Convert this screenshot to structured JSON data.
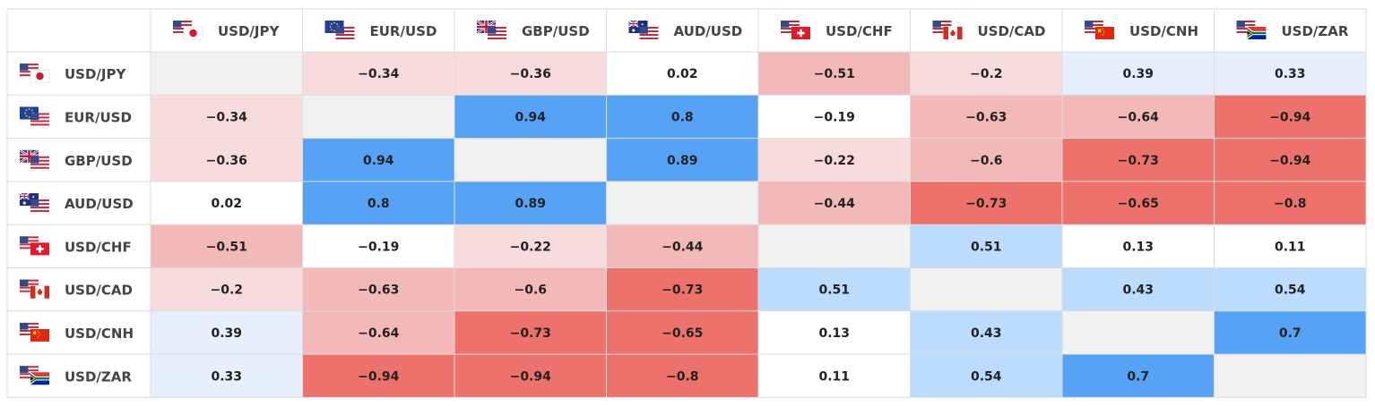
{
  "chart_data": {
    "type": "heatmap",
    "title": "",
    "rows": [
      "USD/JPY",
      "EUR/USD",
      "GBP/USD",
      "AUD/USD",
      "USD/CHF",
      "USD/CAD",
      "USD/CNH",
      "USD/ZAR"
    ],
    "columns": [
      "USD/JPY",
      "EUR/USD",
      "GBP/USD",
      "AUD/USD",
      "USD/CHF",
      "USD/CAD",
      "USD/CNH",
      "USD/ZAR"
    ],
    "values": [
      [
        null,
        -0.34,
        -0.36,
        0.02,
        -0.51,
        -0.2,
        0.39,
        0.33
      ],
      [
        -0.34,
        null,
        0.94,
        0.8,
        -0.19,
        -0.63,
        -0.64,
        -0.94
      ],
      [
        -0.36,
        0.94,
        null,
        0.89,
        -0.22,
        -0.6,
        -0.73,
        -0.94
      ],
      [
        0.02,
        0.8,
        0.89,
        null,
        -0.44,
        -0.73,
        -0.65,
        -0.8
      ],
      [
        -0.51,
        -0.19,
        -0.22,
        -0.44,
        null,
        0.51,
        0.13,
        0.11
      ],
      [
        -0.2,
        -0.63,
        -0.6,
        -0.73,
        0.51,
        null,
        0.43,
        0.54
      ],
      [
        0.39,
        -0.64,
        -0.73,
        -0.65,
        0.13,
        0.43,
        null,
        0.7
      ],
      [
        0.33,
        -0.94,
        -0.94,
        -0.8,
        0.11,
        0.54,
        0.7,
        null
      ]
    ],
    "colors": {
      "diagonal": "#f1f1f1",
      "neutral": "#ffffff",
      "neg_light": "#f8dcdd",
      "neg_mid": "#f3b9b8",
      "neg_strong": "#ec726b",
      "pos_light": "#e6f0fc",
      "pos_mid": "#bcdcfd",
      "pos_strong": "#56a3f5",
      "grid": "#dcdcdc"
    },
    "flags": {
      "USD/JPY": [
        "us-flag-icon",
        "jp-flag-icon"
      ],
      "EUR/USD": [
        "eu-flag-icon",
        "us-flag-icon"
      ],
      "GBP/USD": [
        "gb-flag-icon",
        "us-flag-icon"
      ],
      "AUD/USD": [
        "au-flag-icon",
        "us-flag-icon"
      ],
      "USD/CHF": [
        "us-flag-icon",
        "ch-flag-icon"
      ],
      "USD/CAD": [
        "us-flag-icon",
        "ca-flag-icon"
      ],
      "USD/CNH": [
        "us-flag-icon",
        "cn-flag-icon"
      ],
      "USD/ZAR": [
        "us-flag-icon",
        "za-flag-icon"
      ]
    }
  }
}
